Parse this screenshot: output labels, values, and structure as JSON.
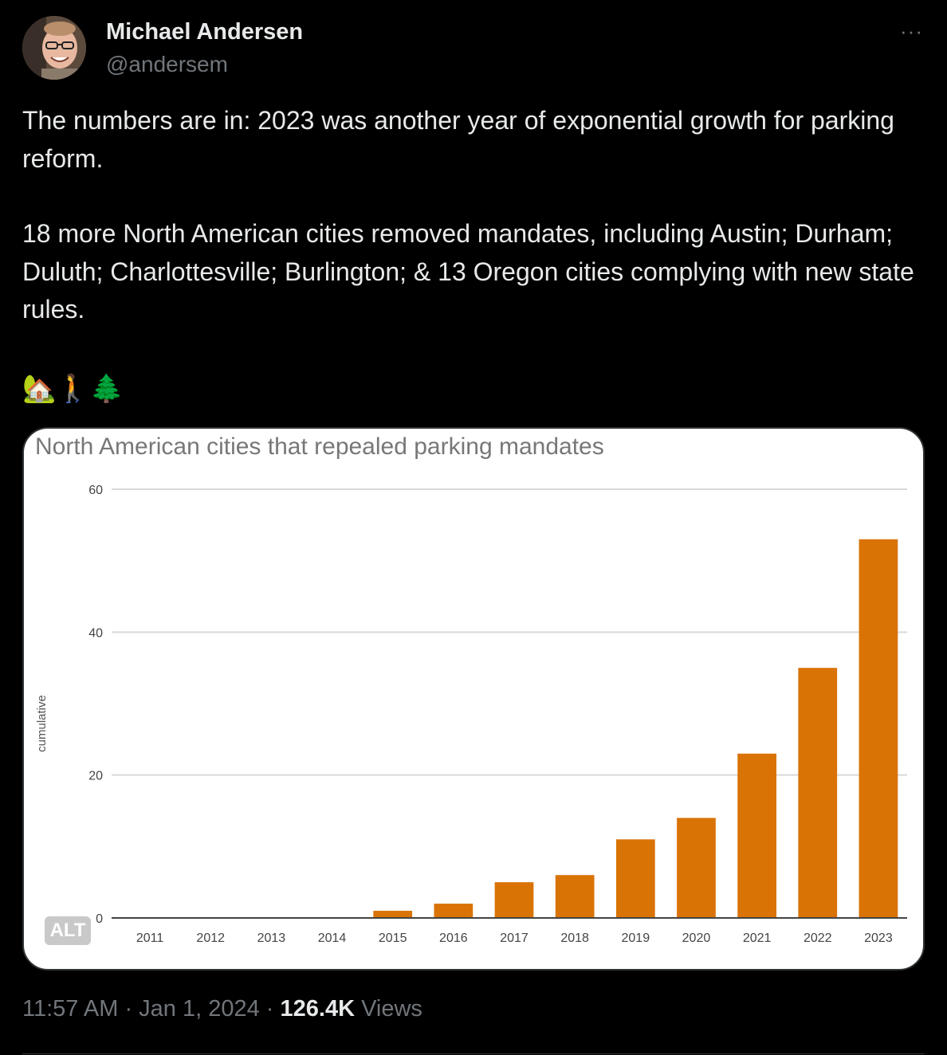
{
  "author": {
    "name": "Michael Andersen",
    "handle": "@andersem"
  },
  "more_label": "···",
  "tweet_text": {
    "para1": "The numbers are in: 2023 was another year of exponential growth for parking reform.",
    "para2": "18 more North American cities removed mandates, including Austin; Durham; Duluth; Charlottesville; Burlington; & 13 Oregon cities complying with new state rules.",
    "emojis": "🏡🚶🌲"
  },
  "media": {
    "alt_label": "ALT"
  },
  "chart_data": {
    "type": "bar",
    "title": "North American cities that repealed parking mandates",
    "ylabel": "cumulative",
    "xlabel": "",
    "categories": [
      "2011",
      "2012",
      "2013",
      "2014",
      "2015",
      "2016",
      "2017",
      "2018",
      "2019",
      "2020",
      "2021",
      "2022",
      "2023"
    ],
    "values": [
      0,
      0,
      0,
      0,
      1,
      2,
      5,
      6,
      11,
      14,
      23,
      35,
      53
    ],
    "ylim": [
      0,
      60
    ],
    "yticks": [
      "0",
      "20",
      "40",
      "60"
    ],
    "bar_color": "#d97305",
    "grid": true
  },
  "meta": {
    "time": "11:57 AM",
    "sep1": " · ",
    "date": "Jan 1, 2024",
    "sep2": " · ",
    "views_count": "126.4K",
    "views_label": " Views"
  }
}
